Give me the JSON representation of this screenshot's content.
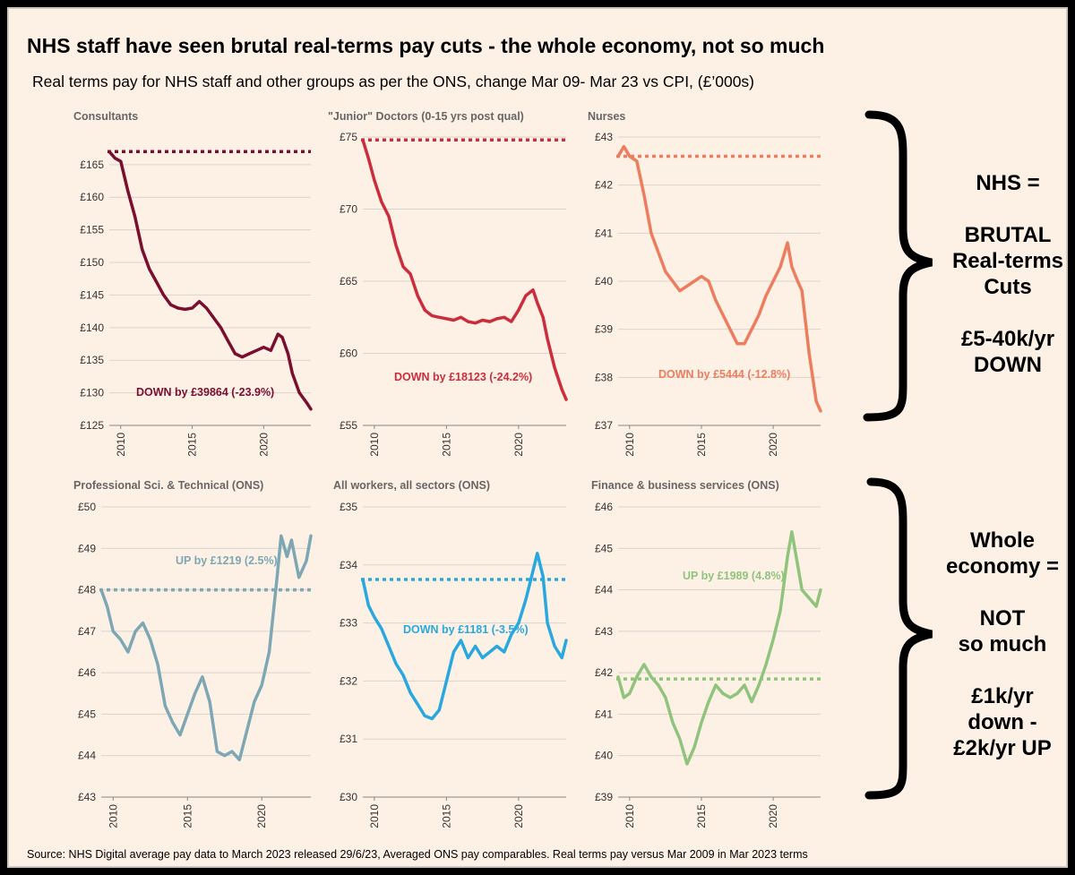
{
  "title": "NHS staff have seen brutal real-terms pay cuts - the whole economy, not so much",
  "subtitle": "Real terms pay for NHS staff and other groups as per the ONS, change Mar 09- Mar 23 vs CPI, (£’000s)",
  "source": "Source: NHS Digital average pay data to March 2023 released 29/6/23, Averaged ONS pay comparables. Real terms pay versus Mar 2009 in Mar 2023 terms",
  "side_nhs": [
    "NHS =",
    "",
    "BRUTAL",
    "Real-terms",
    "Cuts",
    "",
    "£5-40k/yr",
    "DOWN"
  ],
  "side_econ": [
    "Whole",
    "economy =",
    "",
    "NOT",
    "so much",
    "",
    "£1k/yr",
    "down -",
    "£2k/yr UP"
  ],
  "chart_data": [
    {
      "type": "line",
      "title": "Consultants",
      "color": "#7a0e2e",
      "ylim": [
        125,
        168
      ],
      "yticks": [
        125,
        130,
        135,
        140,
        145,
        150,
        155,
        160,
        165
      ],
      "ytick_labels": [
        "£125",
        "£130",
        "£135",
        "£140",
        "£145",
        "£150",
        "£155",
        "£160",
        "£165"
      ],
      "xticks": [
        2010,
        2015,
        2020
      ],
      "xlim": [
        2009.2,
        2023.3
      ],
      "baseline": 167.0,
      "note": "DOWN by  £39864 (-23.9%)",
      "note_color": "#7a0e2e",
      "x": [
        2009.2,
        2009.6,
        2010.0,
        2010.5,
        2011.0,
        2011.5,
        2012.0,
        2012.5,
        2013.0,
        2013.5,
        2014.0,
        2014.5,
        2015.0,
        2015.5,
        2016.0,
        2016.5,
        2017.0,
        2017.5,
        2018.0,
        2018.5,
        2019.0,
        2019.5,
        2020.0,
        2020.5,
        2021.0,
        2021.3,
        2021.7,
        2022.0,
        2022.5,
        2023.0,
        2023.3
      ],
      "y": [
        167,
        166,
        165.5,
        161,
        157,
        152,
        149,
        147,
        145,
        143.5,
        143,
        142.8,
        143,
        144,
        143,
        141.5,
        140,
        138,
        136,
        135.5,
        136,
        136.5,
        137,
        136.5,
        139,
        138.5,
        136,
        133,
        130,
        128.5,
        127.5
      ]
    },
    {
      "type": "line",
      "title": "\"Junior\" Doctors (0-15 yrs post qual)",
      "color": "#cc2d3c",
      "ylim": [
        55,
        75
      ],
      "yticks": [
        55,
        60,
        65,
        70,
        75
      ],
      "ytick_labels": [
        "£55",
        "£60",
        "£65",
        "£70",
        "£75"
      ],
      "xticks": [
        2010,
        2015,
        2020
      ],
      "xlim": [
        2009.2,
        2023.3
      ],
      "baseline": 74.8,
      "note": "DOWN by  £18123 (-24.2%)",
      "note_color": "#cc2d3c",
      "x": [
        2009.2,
        2009.6,
        2010.0,
        2010.5,
        2011.0,
        2011.5,
        2012.0,
        2012.5,
        2013.0,
        2013.5,
        2014.0,
        2014.5,
        2015.0,
        2015.5,
        2016.0,
        2016.5,
        2017.0,
        2017.5,
        2018.0,
        2018.5,
        2019.0,
        2019.5,
        2020.0,
        2020.5,
        2021.0,
        2021.3,
        2021.7,
        2022.0,
        2022.5,
        2023.0,
        2023.3
      ],
      "y": [
        74.8,
        73.5,
        72,
        70.5,
        69.5,
        67.5,
        66,
        65.5,
        64,
        63,
        62.6,
        62.5,
        62.4,
        62.3,
        62.5,
        62.2,
        62.1,
        62.3,
        62.2,
        62.4,
        62.5,
        62.2,
        63,
        64,
        64.4,
        63.5,
        62.5,
        61,
        59,
        57.5,
        56.8
      ]
    },
    {
      "type": "line",
      "title": "Nurses",
      "color": "#ec7d5e",
      "ylim": [
        37,
        43
      ],
      "yticks": [
        37,
        38,
        39,
        40,
        41,
        42,
        43
      ],
      "ytick_labels": [
        "£37",
        "£38",
        "£39",
        "£40",
        "£41",
        "£42",
        "£43"
      ],
      "xticks": [
        2010,
        2015,
        2020
      ],
      "xlim": [
        2009.2,
        2023.3
      ],
      "baseline": 42.6,
      "note": "DOWN by  £5444 (-12.8%)",
      "note_color": "#ec7d5e",
      "x": [
        2009.2,
        2009.6,
        2010.0,
        2010.5,
        2011.0,
        2011.5,
        2012.0,
        2012.5,
        2013.0,
        2013.5,
        2014.0,
        2014.5,
        2015.0,
        2015.5,
        2016.0,
        2016.5,
        2017.0,
        2017.5,
        2018.0,
        2018.5,
        2019.0,
        2019.5,
        2020.0,
        2020.5,
        2021.0,
        2021.3,
        2021.7,
        2022.0,
        2022.5,
        2023.0,
        2023.3
      ],
      "y": [
        42.6,
        42.8,
        42.6,
        42.5,
        41.8,
        41.0,
        40.6,
        40.2,
        40.0,
        39.8,
        39.9,
        40.0,
        40.1,
        40.0,
        39.6,
        39.3,
        39.0,
        38.7,
        38.7,
        39.0,
        39.3,
        39.7,
        40.0,
        40.3,
        40.8,
        40.3,
        40.0,
        39.8,
        38.5,
        37.5,
        37.3
      ]
    },
    {
      "type": "line",
      "title": "Professional Sci. & Technical (ONS)",
      "color": "#7ea7b4",
      "ylim": [
        43,
        50
      ],
      "yticks": [
        43,
        44,
        45,
        46,
        47,
        48,
        49,
        50
      ],
      "ytick_labels": [
        "£43",
        "£44",
        "£45",
        "£46",
        "£47",
        "£48",
        "£49",
        "£50"
      ],
      "xticks": [
        2010,
        2015,
        2020
      ],
      "xlim": [
        2009.2,
        2023.3
      ],
      "baseline": 48.0,
      "note": "UP by  £1219 (2.5%)",
      "note_color": "#7ea7b4",
      "x": [
        2009.2,
        2009.6,
        2010.0,
        2010.5,
        2011.0,
        2011.5,
        2012.0,
        2012.5,
        2013.0,
        2013.5,
        2014.0,
        2014.5,
        2015.0,
        2015.5,
        2016.0,
        2016.5,
        2017.0,
        2017.5,
        2018.0,
        2018.5,
        2019.0,
        2019.5,
        2020.0,
        2020.5,
        2021.0,
        2021.3,
        2021.7,
        2022.0,
        2022.5,
        2023.0,
        2023.3
      ],
      "y": [
        48.0,
        47.6,
        47.0,
        46.8,
        46.5,
        47.0,
        47.2,
        46.8,
        46.2,
        45.2,
        44.8,
        44.5,
        45.0,
        45.5,
        45.9,
        45.3,
        44.1,
        44.0,
        44.1,
        43.9,
        44.6,
        45.3,
        45.7,
        46.5,
        48.2,
        49.3,
        48.8,
        49.2,
        48.3,
        48.7,
        49.3
      ]
    },
    {
      "type": "line",
      "title": "All workers, all sectors (ONS)",
      "color": "#29a8e0",
      "ylim": [
        30,
        35
      ],
      "yticks": [
        30,
        31,
        32,
        33,
        34,
        35
      ],
      "ytick_labels": [
        "£30",
        "£31",
        "£32",
        "£33",
        "£34",
        "£35"
      ],
      "xticks": [
        2010,
        2015,
        2020
      ],
      "xlim": [
        2009.2,
        2023.3
      ],
      "baseline": 33.75,
      "note": "DOWN by  £1181 (-3.5%)",
      "note_color": "#29a8e0",
      "x": [
        2009.2,
        2009.6,
        2010.0,
        2010.5,
        2011.0,
        2011.5,
        2012.0,
        2012.5,
        2013.0,
        2013.5,
        2014.0,
        2014.5,
        2015.0,
        2015.5,
        2016.0,
        2016.5,
        2017.0,
        2017.5,
        2018.0,
        2018.5,
        2019.0,
        2019.5,
        2020.0,
        2020.5,
        2021.0,
        2021.3,
        2021.7,
        2022.0,
        2022.5,
        2023.0,
        2023.3
      ],
      "y": [
        33.75,
        33.3,
        33.1,
        32.9,
        32.6,
        32.3,
        32.1,
        31.8,
        31.6,
        31.4,
        31.35,
        31.5,
        32.0,
        32.5,
        32.7,
        32.4,
        32.6,
        32.4,
        32.5,
        32.6,
        32.5,
        32.8,
        33.0,
        33.4,
        33.9,
        34.2,
        33.8,
        33.0,
        32.6,
        32.4,
        32.7
      ]
    },
    {
      "type": "line",
      "title": "Finance & business services (ONS)",
      "color": "#90c47c",
      "ylim": [
        39,
        46
      ],
      "yticks": [
        39,
        40,
        41,
        42,
        43,
        44,
        45,
        46
      ],
      "ytick_labels": [
        "£39",
        "£40",
        "£41",
        "£42",
        "£43",
        "£44",
        "£45",
        "£46"
      ],
      "xticks": [
        2010,
        2015,
        2020
      ],
      "xlim": [
        2009.2,
        2023.3
      ],
      "baseline": 41.85,
      "note": "UP by  £1989 (4.8%)",
      "note_color": "#90c47c",
      "x": [
        2009.2,
        2009.6,
        2010.0,
        2010.5,
        2011.0,
        2011.5,
        2012.0,
        2012.5,
        2013.0,
        2013.5,
        2014.0,
        2014.5,
        2015.0,
        2015.5,
        2016.0,
        2016.5,
        2017.0,
        2017.5,
        2018.0,
        2018.5,
        2019.0,
        2019.5,
        2020.0,
        2020.5,
        2021.0,
        2021.3,
        2021.7,
        2022.0,
        2022.5,
        2023.0,
        2023.3
      ],
      "y": [
        41.9,
        41.4,
        41.5,
        41.9,
        42.2,
        41.9,
        41.7,
        41.4,
        40.8,
        40.4,
        39.8,
        40.2,
        40.8,
        41.3,
        41.7,
        41.5,
        41.4,
        41.5,
        41.7,
        41.3,
        41.7,
        42.2,
        42.8,
        43.5,
        44.8,
        45.4,
        44.6,
        44.0,
        43.8,
        43.6,
        44.0
      ]
    }
  ]
}
